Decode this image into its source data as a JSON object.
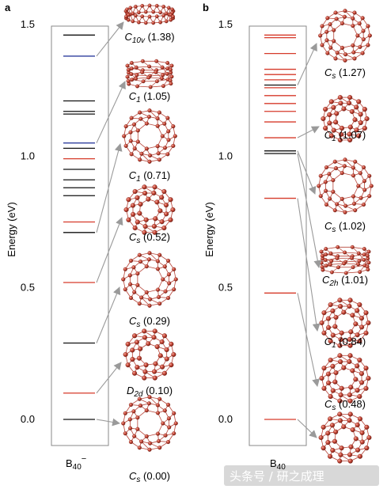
{
  "panels": [
    {
      "letter": "a",
      "ylabel": "Energy (eV)",
      "xlabel_main": "B",
      "xlabel_sub": "40",
      "xlabel_sup": "−",
      "ylim": [
        -0.1,
        1.5
      ],
      "yticks": [
        "0.0",
        "0.5",
        "1.0",
        "1.5"
      ],
      "levels": [
        {
          "e": 1.46,
          "c": "black"
        },
        {
          "e": 1.38,
          "c": "blue"
        },
        {
          "e": 1.21,
          "c": "black"
        },
        {
          "e": 1.17,
          "c": "black"
        },
        {
          "e": 1.16,
          "c": "black"
        },
        {
          "e": 1.05,
          "c": "blue"
        },
        {
          "e": 1.03,
          "c": "black"
        },
        {
          "e": 0.99,
          "c": "red"
        },
        {
          "e": 0.95,
          "c": "black"
        },
        {
          "e": 0.91,
          "c": "black"
        },
        {
          "e": 0.88,
          "c": "black"
        },
        {
          "e": 0.85,
          "c": "black"
        },
        {
          "e": 0.75,
          "c": "red"
        },
        {
          "e": 0.71,
          "c": "black"
        },
        {
          "e": 0.52,
          "c": "red"
        },
        {
          "e": 0.29,
          "c": "black"
        },
        {
          "e": 0.1,
          "c": "red"
        },
        {
          "e": 0.0,
          "c": "black"
        }
      ],
      "isomers": [
        {
          "sym": "C",
          "sub": "10v",
          "energy": "(1.38)",
          "level": 1.38,
          "shape": "ring"
        },
        {
          "sym": "C",
          "sub": "1",
          "energy": "(1.05)",
          "level": 1.05,
          "shape": "tube"
        },
        {
          "sym": "C",
          "sub": "1",
          "energy": "(0.71)",
          "level": 0.71,
          "shape": "round"
        },
        {
          "sym": "C",
          "sub": "s",
          "energy": "(0.52)",
          "level": 0.52,
          "shape": "cage"
        },
        {
          "sym": "C",
          "sub": "s",
          "energy": "(0.29)",
          "level": 0.29,
          "shape": "round"
        },
        {
          "sym": "D",
          "sub": "2d",
          "energy": "(0.10)",
          "level": 0.1,
          "shape": "cage"
        },
        {
          "sym": "C",
          "sub": "s",
          "energy": "(0.00)",
          "level": 0.0,
          "shape": "round"
        }
      ]
    },
    {
      "letter": "b",
      "ylabel": "Energy (eV)",
      "xlabel_main": "B",
      "xlabel_sub": "40",
      "xlabel_sup": "",
      "ylim": [
        -0.1,
        1.5
      ],
      "yticks": [
        "0.0",
        "0.5",
        "1.0",
        "1.5"
      ],
      "levels": [
        {
          "e": 1.46,
          "c": "red"
        },
        {
          "e": 1.45,
          "c": "red"
        },
        {
          "e": 1.39,
          "c": "red"
        },
        {
          "e": 1.33,
          "c": "red"
        },
        {
          "e": 1.31,
          "c": "red"
        },
        {
          "e": 1.29,
          "c": "red"
        },
        {
          "e": 1.27,
          "c": "black"
        },
        {
          "e": 1.26,
          "c": "red"
        },
        {
          "e": 1.23,
          "c": "red"
        },
        {
          "e": 1.2,
          "c": "red"
        },
        {
          "e": 1.17,
          "c": "red"
        },
        {
          "e": 1.13,
          "c": "red"
        },
        {
          "e": 1.07,
          "c": "red"
        },
        {
          "e": 1.02,
          "c": "black"
        },
        {
          "e": 1.01,
          "c": "black"
        },
        {
          "e": 0.84,
          "c": "red"
        },
        {
          "e": 0.48,
          "c": "red"
        },
        {
          "e": 0.0,
          "c": "red"
        }
      ],
      "isomers": [
        {
          "sym": "C",
          "sub": "s",
          "energy": "(1.27)",
          "level": 1.27,
          "shape": "round"
        },
        {
          "sym": "C",
          "sub": "1",
          "energy": "(1.07)",
          "level": 1.07,
          "shape": "cage"
        },
        {
          "sym": "C",
          "sub": "s",
          "energy": "(1.02)",
          "level": 1.02,
          "shape": "round"
        },
        {
          "sym": "C",
          "sub": "2h",
          "energy": "(1.01)",
          "level": 1.01,
          "shape": "tube"
        },
        {
          "sym": "C",
          "sub": "1",
          "energy": "(0.84)",
          "level": 0.84,
          "shape": "cage"
        },
        {
          "sym": "C",
          "sub": "s",
          "energy": "(0.48)",
          "level": 0.48,
          "shape": "cage"
        },
        {
          "sym": "",
          "sub": "",
          "energy": "",
          "level": 0.0,
          "shape": "cage"
        }
      ]
    }
  ],
  "colors": {
    "black": "#111111",
    "red": "#d63a2a",
    "blue": "#2f3f9e",
    "atom": "#c9473a",
    "arrow": "#9a9a9a",
    "frame": "#888888"
  },
  "watermark": "头条号 / 研之成理"
}
